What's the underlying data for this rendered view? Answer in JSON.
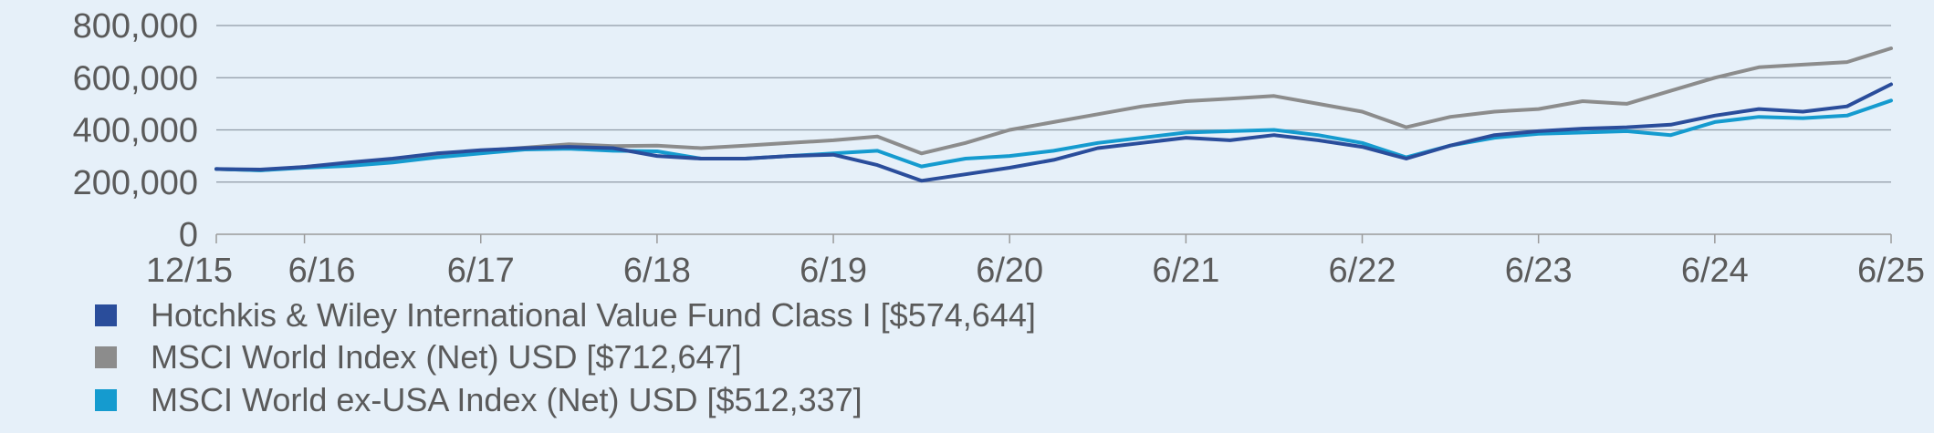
{
  "chart_data": {
    "type": "line",
    "title": "",
    "xlabel": "",
    "ylabel": "",
    "ylim": [
      0,
      800000
    ],
    "y_ticks": [
      "0",
      "200,000",
      "400,000",
      "600,000",
      "800,000"
    ],
    "y_tick_values": [
      0,
      200000,
      400000,
      600000,
      800000
    ],
    "x_ticks": [
      "12/15",
      "6/16",
      "6/17",
      "6/18",
      "6/19",
      "6/20",
      "6/21",
      "6/22",
      "6/23",
      "6/24",
      "6/25"
    ],
    "x_tick_values": [
      0,
      6,
      18,
      30,
      42,
      54,
      66,
      78,
      90,
      102,
      114
    ],
    "x_range": [
      0,
      114
    ],
    "grid": "horizontal",
    "legend_position": "bottom-left",
    "x": [
      0,
      3,
      6,
      9,
      12,
      15,
      18,
      21,
      24,
      27,
      30,
      33,
      36,
      39,
      42,
      45,
      48,
      51,
      54,
      57,
      60,
      63,
      66,
      69,
      72,
      75,
      78,
      81,
      84,
      87,
      90,
      93,
      96,
      99,
      102,
      105,
      108,
      111,
      114
    ],
    "series": [
      {
        "name": "Hotchkis & Wiley International Value Fund Class I [$574,644]",
        "color": "#2a4d9b",
        "values": [
          250000,
          248000,
          258000,
          275000,
          290000,
          310000,
          322000,
          330000,
          335000,
          330000,
          300000,
          290000,
          290000,
          300000,
          305000,
          265000,
          205000,
          230000,
          255000,
          285000,
          330000,
          350000,
          370000,
          360000,
          380000,
          360000,
          335000,
          290000,
          340000,
          380000,
          395000,
          405000,
          410000,
          420000,
          455000,
          480000,
          470000,
          490000,
          574644
        ]
      },
      {
        "name": "MSCI World Index (Net) USD [$712,647]",
        "color": "#8c8c8c",
        "values": [
          250000,
          245000,
          258000,
          272000,
          288000,
          305000,
          320000,
          332000,
          345000,
          338000,
          340000,
          330000,
          340000,
          350000,
          360000,
          375000,
          310000,
          350000,
          400000,
          430000,
          460000,
          490000,
          510000,
          520000,
          530000,
          500000,
          470000,
          410000,
          450000,
          470000,
          480000,
          510000,
          500000,
          550000,
          600000,
          640000,
          650000,
          660000,
          712647
        ]
      },
      {
        "name": "MSCI World ex-USA Index (Net) USD [$512,337]",
        "color": "#159bcf",
        "values": [
          250000,
          245000,
          255000,
          262000,
          275000,
          295000,
          310000,
          325000,
          328000,
          320000,
          318000,
          290000,
          290000,
          300000,
          310000,
          320000,
          260000,
          290000,
          300000,
          320000,
          350000,
          370000,
          390000,
          395000,
          400000,
          380000,
          350000,
          295000,
          340000,
          370000,
          385000,
          390000,
          395000,
          380000,
          430000,
          450000,
          445000,
          455000,
          512337
        ]
      }
    ]
  }
}
